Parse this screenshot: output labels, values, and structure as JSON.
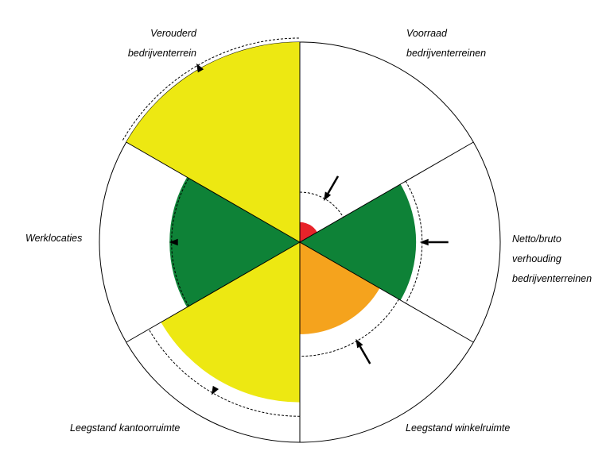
{
  "chart_data": {
    "type": "polar-area",
    "outer_value": 1.0,
    "categories": [
      {
        "lines": [
          "Voorraad",
          "bedrijventerreinen"
        ],
        "value": 0.1,
        "color": "#e8232a",
        "reference": 0.25,
        "arrow_direction": "inward"
      },
      {
        "lines": [
          "Netto/bruto",
          "verhouding",
          "bedrijventerreinen"
        ],
        "value": 0.58,
        "color": "#0e8237",
        "reference": 0.61,
        "arrow_direction": "inward"
      },
      {
        "lines": [
          "Leegstand winkelruimte"
        ],
        "value": 0.46,
        "color": "#f5a31d",
        "reference": 0.57,
        "arrow_direction": "inward"
      },
      {
        "lines": [
          "Leegstand kantoorruimte"
        ],
        "value": 0.8,
        "color": "#ede812",
        "reference": 0.87,
        "arrow_direction": "outward"
      },
      {
        "lines": [
          "Werklocaties"
        ],
        "value": 0.65,
        "color": "#0e8237",
        "reference": 0.64,
        "arrow_direction": "outward"
      },
      {
        "lines": [
          "Verouderd",
          "bedrijventerrein"
        ],
        "value": 1.0,
        "color": "#ede812",
        "reference": 1.02,
        "arrow_direction": "outward"
      }
    ]
  }
}
